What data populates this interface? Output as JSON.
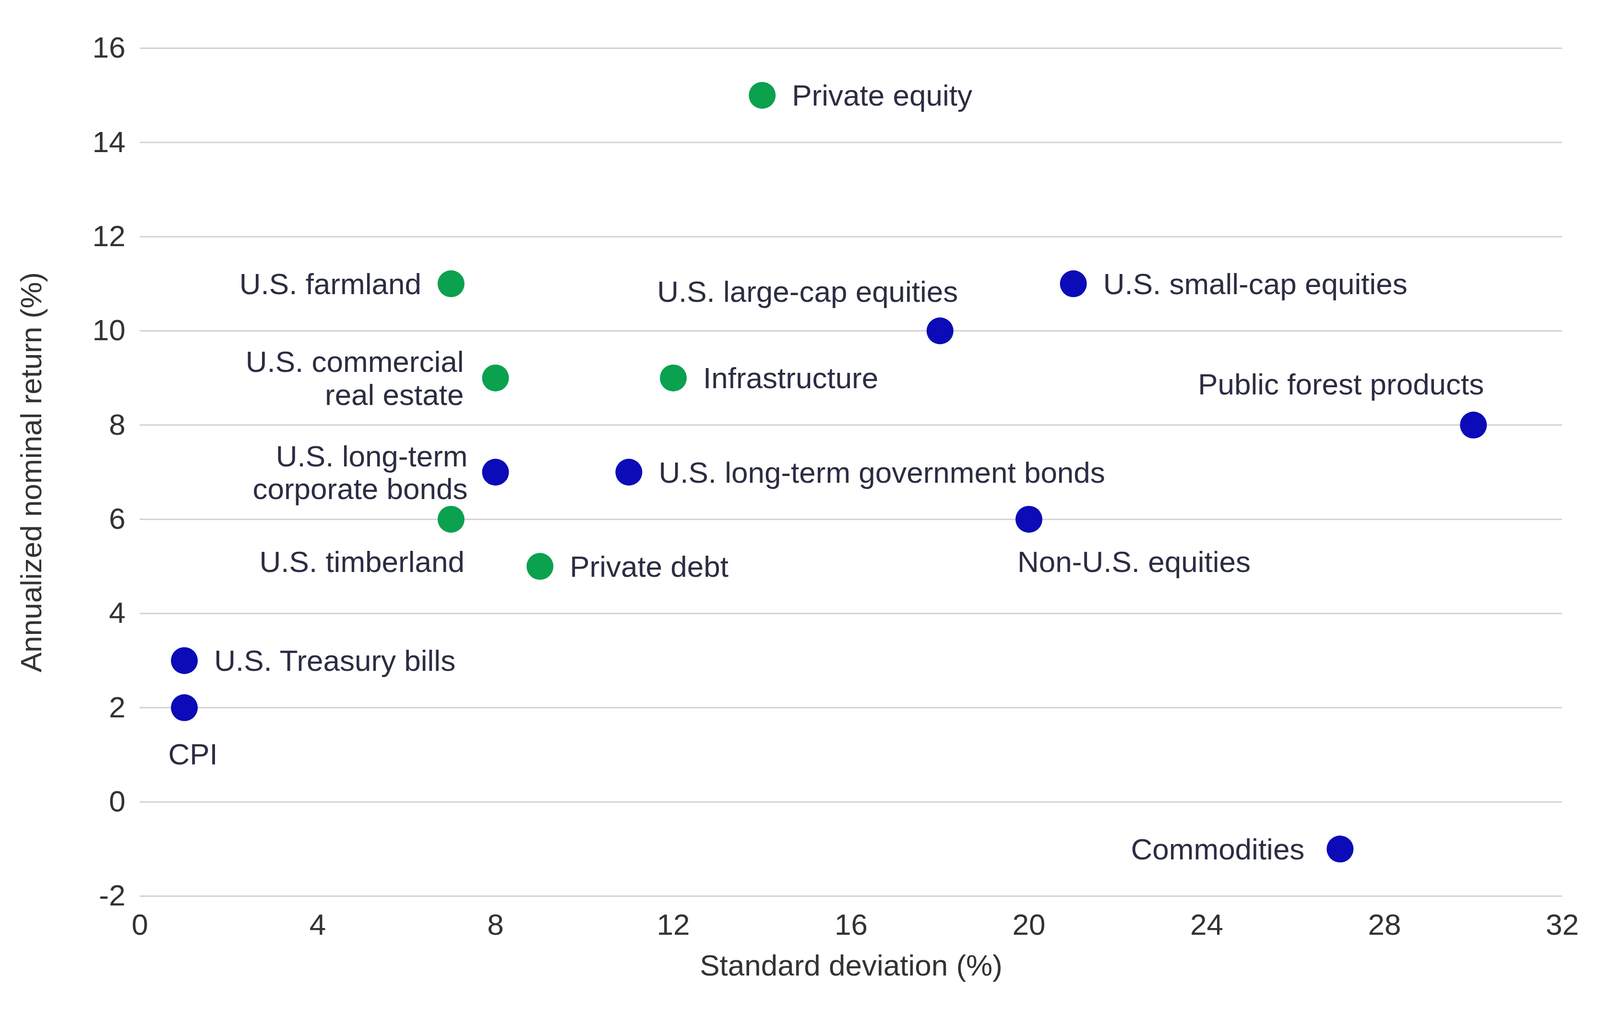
{
  "chart_data": {
    "type": "scatter",
    "xlabel": "Standard deviation (%)",
    "ylabel": "Annualized nominal return (%)",
    "labels": [
      "Private equity",
      "U.S. farmland",
      "U.S. commercial\nreal estate",
      "Infrastructure",
      "U.S. long-term\ncorporate bonds",
      "U.S. timberland",
      "Private debt",
      "U.S. Treasury bills",
      "CPI",
      "U.S. large-cap equities",
      "U.S. small-cap equities",
      "U.S. long-term government bonds",
      "Non-U.S. equities",
      "Public forest products",
      "Commodities"
    ],
    "x": [
      14,
      7,
      8,
      12,
      8,
      7,
      9,
      1,
      1,
      18,
      21,
      11,
      20,
      30,
      27
    ],
    "values": [
      15,
      11,
      9,
      9,
      7,
      6,
      5,
      3,
      2,
      10,
      11,
      7,
      6,
      8,
      -1
    ],
    "colors": [
      "#0aa14f",
      "#0aa14f",
      "#0aa14f",
      "#0aa14f",
      "#0b0bb8",
      "#0aa14f",
      "#0aa14f",
      "#0b0bb8",
      "#0b0bb8",
      "#0b0bb8",
      "#0b0bb8",
      "#0b0bb8",
      "#0b0bb8",
      "#0b0bb8",
      "#0b0bb8"
    ],
    "xlim": [
      0,
      32
    ],
    "xticks": [
      0,
      4,
      8,
      12,
      16,
      20,
      24,
      28,
      32
    ],
    "ylim": [
      -2,
      16
    ],
    "yticks": [
      -2,
      0,
      2,
      4,
      6,
      8,
      10,
      12,
      14,
      16
    ],
    "grid": true
  }
}
